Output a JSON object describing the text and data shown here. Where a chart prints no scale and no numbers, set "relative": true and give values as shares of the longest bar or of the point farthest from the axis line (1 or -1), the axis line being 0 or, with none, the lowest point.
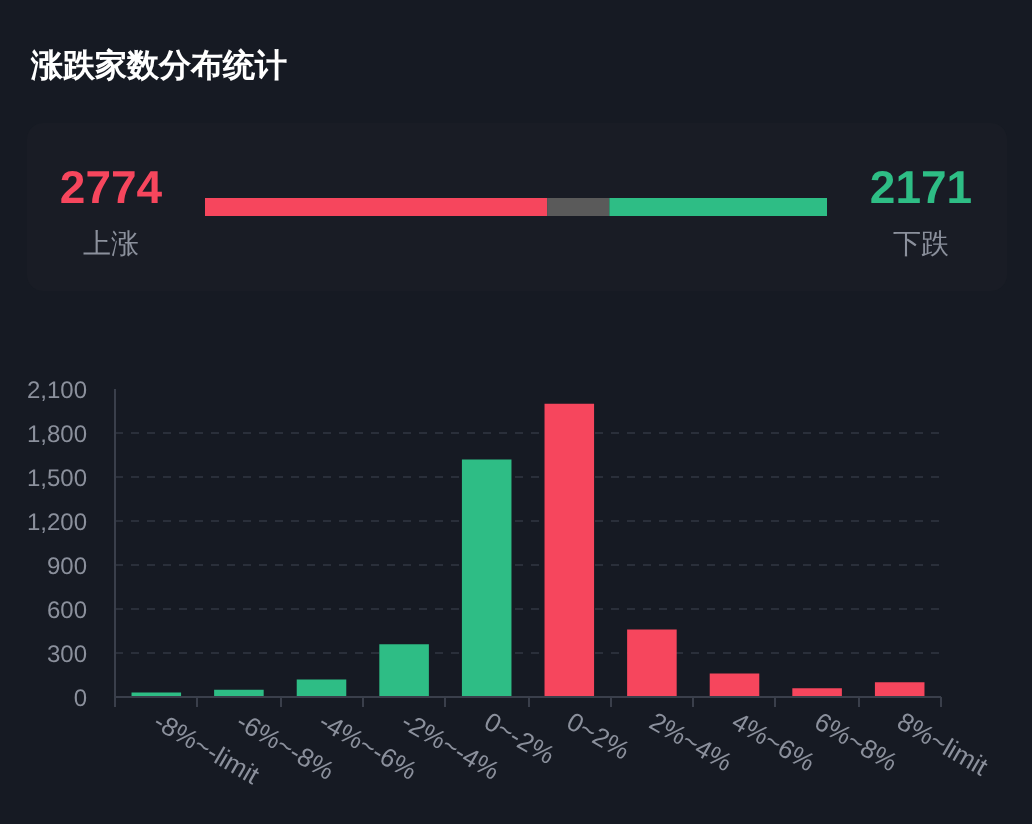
{
  "chart_data": [
    {
      "type": "bar",
      "title": "涨跌家数分布统计",
      "orientation": "horizontal",
      "stacked": true,
      "relative": true,
      "categories": [
        null
      ],
      "series": [
        {
          "color": "#f6465d",
          "values": [
            0.55
          ]
        },
        {
          "color": "#5a5a5a",
          "values": [
            0.1
          ]
        },
        {
          "color": "#2ebd85",
          "values": [
            0.35
          ]
        }
      ],
      "annotations": [
        "2774",
        "上涨",
        "2171",
        "下跌"
      ],
      "tick_labels": false
    },
    {
      "type": "bar",
      "categories": [
        "-8%~-limit",
        "-6%~-8%",
        "-4%~-6%",
        "-2%~-4%",
        "0~-2%",
        "0~2%",
        "2%~4%",
        "4%~6%",
        "6%~8%",
        "8%~limit"
      ],
      "values": [
        30,
        50,
        120,
        360,
        1620,
        2000,
        460,
        160,
        60,
        100
      ],
      "colors": [
        "#2ebd85",
        "#2ebd85",
        "#2ebd85",
        "#2ebd85",
        "#2ebd85",
        "#f6465d",
        "#f6465d",
        "#f6465d",
        "#f6465d",
        "#f6465d"
      ],
      "ylim": [
        0,
        2100
      ],
      "yticks": [
        0,
        300,
        600,
        900,
        {
          "value": 1200,
          "label": "1,200"
        },
        {
          "value": 1500,
          "label": "1,500"
        },
        {
          "value": 1800,
          "label": "1,800"
        },
        {
          "value": 2100,
          "label": "2,100"
        }
      ],
      "grid": "y"
    }
  ]
}
